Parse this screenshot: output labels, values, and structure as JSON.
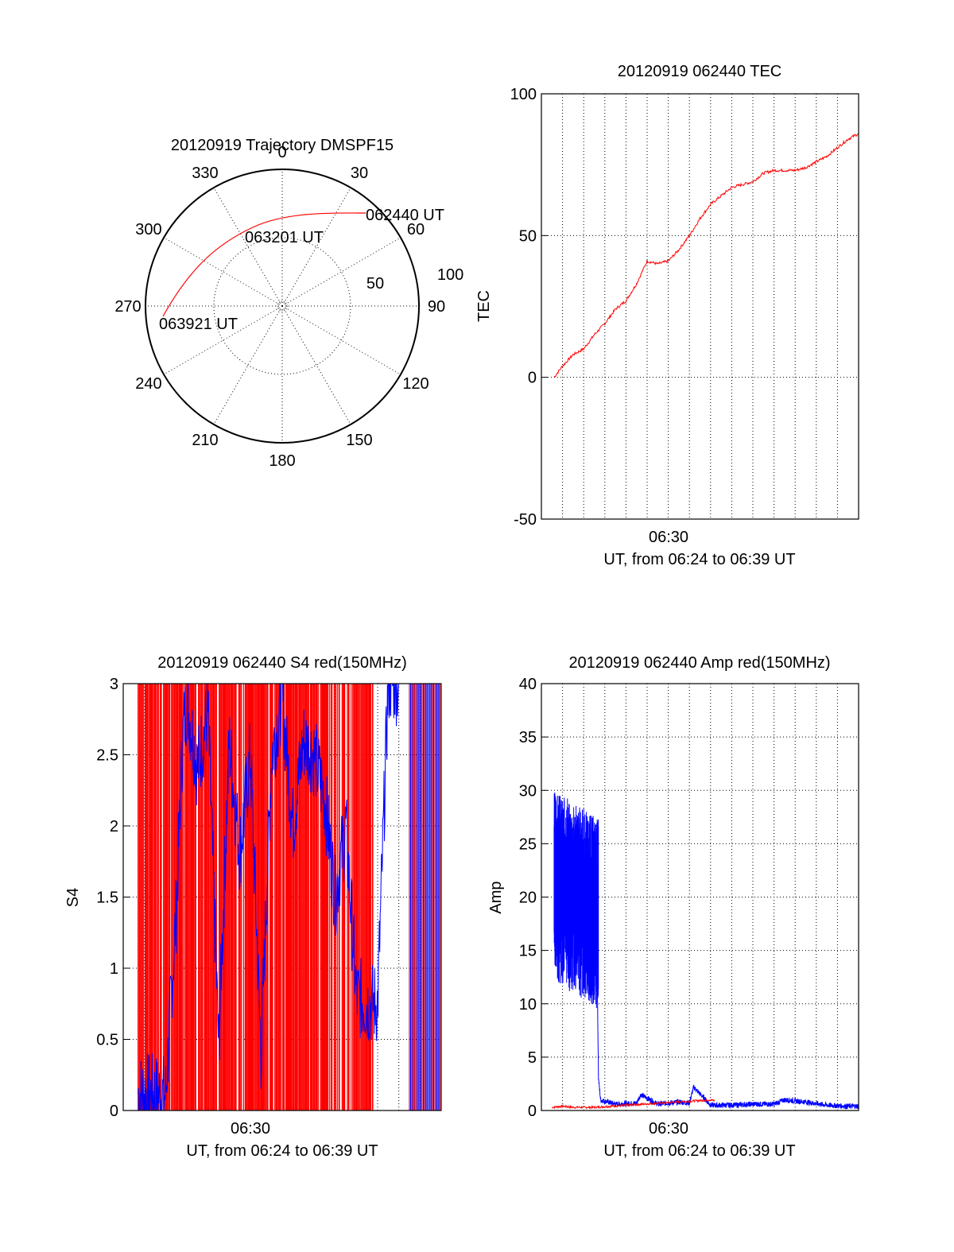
{
  "chart_data": [
    {
      "id": "trajectory",
      "type": "polar",
      "title": "20120919 Trajectory DMSPF15",
      "angle_ticks": [
        "0",
        "30",
        "60",
        "90",
        "120",
        "150",
        "180",
        "210",
        "240",
        "270",
        "300",
        "330"
      ],
      "radius_ticks": [
        "50",
        "100"
      ],
      "rmax": 100,
      "series": [
        {
          "color": "#ff0000",
          "points": [
            {
              "az": 33,
              "el": 23
            },
            {
              "az": 37,
              "el": 30
            },
            {
              "az": 41,
              "el": 38
            },
            {
              "az": 45,
              "el": 47
            },
            {
              "az": 49,
              "el": 57
            },
            {
              "az": 49,
              "el": 65
            },
            {
              "az": 53,
              "el": 67
            }
          ],
          "points2": [
            {
              "az": 0,
              "el": 33
            },
            {
              "az": 330,
              "el": 33
            },
            {
              "az": 310,
              "el": 30
            },
            {
              "az": 296,
              "el": 22
            },
            {
              "az": 285,
              "el": 12
            },
            {
              "az": 278,
              "el": 4
            },
            {
              "az": 276,
              "el": 2
            }
          ]
        }
      ],
      "annotations": [
        {
          "text": "062440 UT"
        },
        {
          "text": "063201 UT"
        },
        {
          "text": "063921 UT"
        }
      ]
    },
    {
      "id": "tec",
      "type": "line",
      "title": "20120919 062440 TEC",
      "ylabel": "TEC",
      "xlabel": "UT, from 06:24 to 06:39 UT",
      "x_tick_label": "06:30",
      "ylim": [
        -50,
        100
      ],
      "y_ticks": [
        -50,
        0,
        50,
        100
      ],
      "grid": true,
      "x_range": [
        0,
        15
      ],
      "series": [
        {
          "color": "#ff0000",
          "x": [
            0.6,
            1.0,
            1.5,
            2.0,
            2.5,
            3.0,
            3.5,
            4.0,
            4.5,
            5.0,
            5.5,
            6.0,
            6.5,
            7.0,
            7.5,
            8.0,
            8.5,
            9.0,
            9.5,
            10.0,
            10.5,
            11.0,
            11.5,
            12.0,
            12.5,
            13.0,
            13.5,
            14.0,
            14.5,
            15.0
          ],
          "y": [
            0,
            4,
            8,
            10,
            15,
            19,
            24,
            27,
            33,
            41,
            40,
            41,
            45,
            50,
            56,
            61,
            64,
            67,
            68,
            69,
            72,
            73,
            73,
            73,
            74,
            76,
            78,
            81,
            84,
            86
          ]
        }
      ]
    },
    {
      "id": "s4",
      "type": "bar",
      "title": "20120919 062440 S4 red(150MHz)",
      "ylabel": "S4",
      "xlabel": "UT, from 06:24 to 06:39 UT",
      "x_tick_label": "06:30",
      "ylim": [
        0,
        3
      ],
      "y_ticks": [
        "0",
        "0.5",
        "1",
        "1.5",
        "2",
        "2.5",
        "3"
      ],
      "grid": true,
      "x_range": [
        0,
        15
      ],
      "series": [
        {
          "name": "",
          "color": "#ff0000",
          "x_range": [
            0.7,
            11.8
          ],
          "y_range": [
            0,
            3
          ]
        },
        {
          "name": "",
          "color": "#0000ff",
          "x": [
            0.7,
            1.0,
            1.5,
            2.0,
            2.5,
            2.8,
            3.0,
            3.5,
            4.0,
            4.5,
            5.0,
            5.5,
            6.0,
            6.5,
            7.0,
            7.5,
            8.0,
            8.5,
            9.0,
            9.5,
            10.0,
            10.5,
            11.0,
            11.5,
            12.0,
            12.5,
            13.0
          ],
          "y": [
            0.12,
            0.12,
            0.11,
            0.11,
            1.4,
            2.6,
            2.9,
            2.4,
            2.8,
            0.45,
            2.6,
            1.8,
            2.5,
            0.4,
            2.5,
            2.9,
            2.0,
            2.6,
            2.5,
            2.2,
            1.5,
            2.0,
            0.8,
            0.75,
            0.75,
            3.0,
            3.0
          ]
        }
      ]
    },
    {
      "id": "amp",
      "type": "line",
      "title": "20120919 062440 Amp red(150MHz)",
      "ylabel": "Amp",
      "xlabel": "UT, from 06:24 to 06:39 UT",
      "x_tick_label": "06:30",
      "ylim": [
        0,
        40
      ],
      "y_ticks": [
        0,
        5,
        10,
        15,
        20,
        25,
        30,
        35,
        40
      ],
      "grid": true,
      "x_range": [
        0,
        15
      ],
      "series": [
        {
          "name": "",
          "color": "#ff0000",
          "x": [
            0.5,
            1.0,
            1.5,
            2.0,
            2.5,
            8.0,
            8.2
          ],
          "y": [
            0.3,
            0.4,
            0.3,
            0.3,
            0.3,
            1.0,
            0.9
          ]
        },
        {
          "name": "",
          "color": "#0000ff",
          "x": [
            0.6,
            0.8,
            1.2,
            1.6,
            2.0,
            2.3,
            2.6,
            2.7,
            2.8,
            3.5,
            4.5,
            4.7,
            5.5,
            6.5,
            7.0,
            7.2,
            8.0,
            9.0,
            10.0,
            11.0,
            11.5,
            12.5,
            13.5,
            14.5,
            15.0
          ],
          "y": [
            22,
            26,
            24,
            23,
            22,
            21,
            19,
            3,
            1.0,
            0.6,
            0.7,
            1.5,
            0.6,
            0.8,
            0.7,
            2.2,
            0.5,
            0.5,
            0.6,
            0.6,
            1.0,
            0.8,
            0.5,
            0.4,
            0.4
          ]
        }
      ]
    }
  ]
}
